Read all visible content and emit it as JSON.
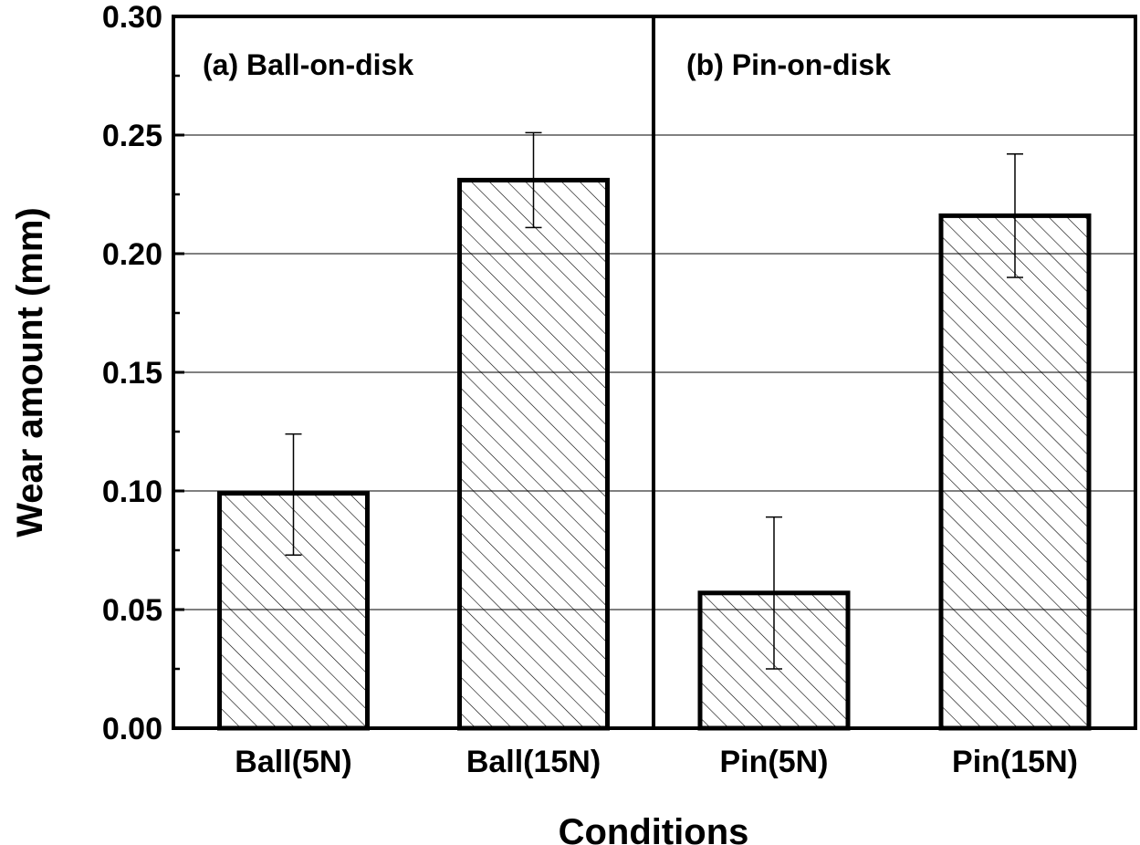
{
  "chart_data": {
    "type": "bar",
    "categories": [
      "Ball(5N)",
      "Ball(15N)",
      "Pin(5N)",
      "Pin(15N)"
    ],
    "values": [
      0.099,
      0.231,
      0.057,
      0.216
    ],
    "error_bars": [
      {
        "low": 0.073,
        "high": 0.124
      },
      {
        "low": 0.211,
        "high": 0.251
      },
      {
        "low": 0.025,
        "high": 0.089
      },
      {
        "low": 0.19,
        "high": 0.242
      }
    ],
    "xlabel": "Conditions",
    "ylabel": "Wear amount (mm)",
    "ylim": [
      0,
      0.3
    ],
    "yticks": [
      "0.00",
      "0.05",
      "0.10",
      "0.15",
      "0.20",
      "0.25",
      "0.30"
    ],
    "panels": [
      {
        "label": "(a) Ball-on-disk",
        "categories": [
          0,
          1
        ]
      },
      {
        "label": "(b) Pin-on-disk",
        "categories": [
          2,
          3
        ]
      }
    ],
    "grid": true,
    "bar_fill": "hatched",
    "colors": {
      "bar_edge": "#000000",
      "hatch": "#000000",
      "grid": "#808080",
      "background": "#ffffff"
    }
  }
}
